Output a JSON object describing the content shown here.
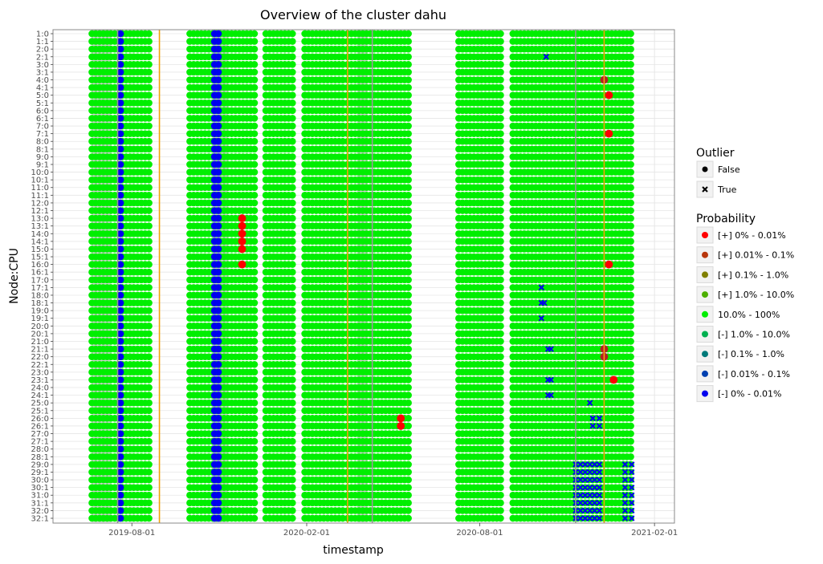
{
  "chart_data": {
    "type": "scatter",
    "title": "Overview of the cluster dahu",
    "xlabel": "timestamp",
    "ylabel": "Node:CPU",
    "x_range": [
      "2019-05-10",
      "2021-02-22"
    ],
    "x_ticks": [
      "2019-08-01",
      "2020-02-01",
      "2020-08-01",
      "2021-02-01"
    ],
    "nodes": 32,
    "cpus_per_node": 2,
    "grid": true,
    "observation_periods": [
      [
        "2019-06-20",
        "2019-08-20"
      ],
      [
        "2019-10-01",
        "2019-12-10"
      ],
      [
        "2019-12-20",
        "2020-01-20"
      ],
      [
        "2020-01-30",
        "2020-03-10"
      ],
      [
        "2020-03-15",
        "2020-05-20"
      ],
      [
        "2020-07-10",
        "2020-08-25"
      ],
      [
        "2020-09-05",
        "2021-01-10"
      ]
    ],
    "gray_bands": [
      [
        "2019-06-20",
        "2019-07-10"
      ],
      [
        "2019-10-25",
        "2019-11-10"
      ],
      [
        "2020-03-25",
        "2020-04-05"
      ]
    ],
    "blue_columns": [
      "2019-07-20",
      "2019-10-27",
      "2019-10-31"
    ],
    "vertical_lines": [
      {
        "date": "2019-07-17",
        "color": "#999999"
      },
      {
        "date": "2019-08-30",
        "color": "#f0a30a"
      },
      {
        "date": "2020-03-15",
        "color": "#f0a30a"
      },
      {
        "date": "2020-04-10",
        "color": "#999999"
      },
      {
        "date": "2020-11-10",
        "color": "#999999"
      },
      {
        "date": "2020-12-10",
        "color": "#f0a30a"
      }
    ],
    "highlight_points": [
      {
        "date": "2019-11-25",
        "row": "13:0",
        "color": "#ff0000"
      },
      {
        "date": "2019-11-25",
        "row": "13:1",
        "color": "#ff0000"
      },
      {
        "date": "2019-11-25",
        "row": "14:0",
        "color": "#ff0000"
      },
      {
        "date": "2019-11-25",
        "row": "14:1",
        "color": "#ff0000"
      },
      {
        "date": "2019-11-25",
        "row": "15:0",
        "color": "#ff0000"
      },
      {
        "date": "2019-11-25",
        "row": "16:0",
        "color": "#ff0000"
      },
      {
        "date": "2020-05-10",
        "row": "26:0",
        "color": "#ff0000"
      },
      {
        "date": "2020-05-10",
        "row": "26:1",
        "color": "#ff0000"
      },
      {
        "date": "2020-12-15",
        "row": "5:0",
        "color": "#ff0000"
      },
      {
        "date": "2020-12-15",
        "row": "7:1",
        "color": "#ff0000"
      },
      {
        "date": "2020-12-15",
        "row": "16:0",
        "color": "#ff0000"
      },
      {
        "date": "2020-12-20",
        "row": "23:1",
        "color": "#ff0000"
      },
      {
        "date": "2020-12-10",
        "row": "4:0",
        "color": "#b22222"
      },
      {
        "date": "2020-12-10",
        "row": "21:1",
        "color": "#b22222"
      },
      {
        "date": "2020-12-10",
        "row": "22:0",
        "color": "#b22222"
      }
    ],
    "outlier_points": [
      {
        "date": "2020-10-10",
        "row": "2:1"
      },
      {
        "date": "2020-10-05",
        "row": "17:1"
      },
      {
        "date": "2020-10-05",
        "row": "18:1"
      },
      {
        "date": "2020-10-08",
        "row": "18:1"
      },
      {
        "date": "2020-10-05",
        "row": "19:1"
      },
      {
        "date": "2020-10-12",
        "row": "21:1"
      },
      {
        "date": "2020-10-15",
        "row": "21:1"
      },
      {
        "date": "2020-10-12",
        "row": "23:1"
      },
      {
        "date": "2020-10-15",
        "row": "23:1"
      },
      {
        "date": "2020-10-12",
        "row": "24:1"
      },
      {
        "date": "2020-10-15",
        "row": "24:1"
      },
      {
        "date": "2020-11-25",
        "row": "25:0"
      },
      {
        "date": "2020-11-28",
        "row": "26:0"
      },
      {
        "date": "2020-12-05",
        "row": "26:0"
      },
      {
        "date": "2020-11-28",
        "row": "26:1"
      },
      {
        "date": "2020-12-05",
        "row": "26:1"
      }
    ],
    "outlier_cluster": {
      "dates": [
        "2020-11-10",
        "2020-11-15",
        "2020-11-20",
        "2020-11-25",
        "2020-11-30",
        "2020-12-05",
        "2021-01-01",
        "2021-01-08"
      ],
      "rows": [
        "29:0",
        "29:1",
        "30:0",
        "30:1",
        "31:0",
        "31:1",
        "32:0",
        "32:1"
      ]
    },
    "legend": {
      "placement": "right",
      "outlier_title": "Outlier",
      "outlier_entries": [
        {
          "label": "False",
          "marker": "circle"
        },
        {
          "label": "True",
          "marker": "cross"
        }
      ],
      "probability_title": "Probability",
      "probability_entries": [
        {
          "label": "[+] 0% - 0.01%",
          "color": "#ff0000"
        },
        {
          "label": "[+] 0.01% - 0.1%",
          "color": "#b8360c"
        },
        {
          "label": "[+] 0.1% - 1.0%",
          "color": "#7f7f00"
        },
        {
          "label": "[+] 1.0% - 10.0%",
          "color": "#4caf00"
        },
        {
          "label": "10.0% - 100%",
          "color": "#00ee00"
        },
        {
          "label": "[-] 1.0% - 10.0%",
          "color": "#00b050"
        },
        {
          "label": "[-] 0.1% - 1.0%",
          "color": "#007a7a"
        },
        {
          "label": "[-] 0.01% - 0.1%",
          "color": "#0040b0"
        },
        {
          "label": "[-] 0% - 0.01%",
          "color": "#0000ee"
        }
      ]
    },
    "colors": {
      "main": "#00ee00",
      "gray": "#aaaaaa",
      "panel_border": "#888888",
      "grid": "#e6e6e6"
    }
  }
}
